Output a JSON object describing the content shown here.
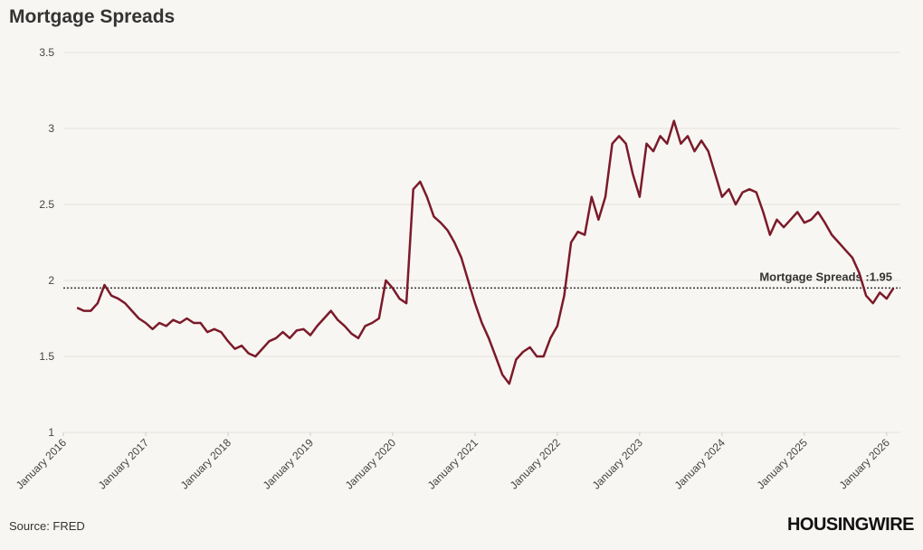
{
  "chart_data": {
    "type": "line",
    "title": "Mortgage Spreads",
    "source": "Source: FRED",
    "logo": "HOUSINGWIRE",
    "x": [
      "2016-03",
      "2016-04",
      "2016-05",
      "2016-06",
      "2016-07",
      "2016-08",
      "2016-09",
      "2016-10",
      "2016-11",
      "2016-12",
      "2017-01",
      "2017-02",
      "2017-03",
      "2017-04",
      "2017-05",
      "2017-06",
      "2017-07",
      "2017-08",
      "2017-09",
      "2017-10",
      "2017-11",
      "2017-12",
      "2018-01",
      "2018-02",
      "2018-03",
      "2018-04",
      "2018-05",
      "2018-06",
      "2018-07",
      "2018-08",
      "2018-09",
      "2018-10",
      "2018-11",
      "2018-12",
      "2019-01",
      "2019-02",
      "2019-03",
      "2019-04",
      "2019-05",
      "2019-06",
      "2019-07",
      "2019-08",
      "2019-09",
      "2019-10",
      "2019-11",
      "2019-12",
      "2020-01",
      "2020-02",
      "2020-03",
      "2020-04",
      "2020-05",
      "2020-06",
      "2020-07",
      "2020-08",
      "2020-09",
      "2020-10",
      "2020-11",
      "2020-12",
      "2021-01",
      "2021-02",
      "2021-03",
      "2021-04",
      "2021-05",
      "2021-06",
      "2021-07",
      "2021-08",
      "2021-09",
      "2021-10",
      "2021-11",
      "2021-12",
      "2022-01",
      "2022-02",
      "2022-03",
      "2022-04",
      "2022-05",
      "2022-06",
      "2022-07",
      "2022-08",
      "2022-09",
      "2022-10",
      "2022-11",
      "2022-12",
      "2023-01",
      "2023-02",
      "2023-03",
      "2023-04",
      "2023-05",
      "2023-06",
      "2023-07",
      "2023-08",
      "2023-09",
      "2023-10",
      "2023-11",
      "2023-12",
      "2024-01",
      "2024-02",
      "2024-03",
      "2024-04",
      "2024-05",
      "2024-06",
      "2024-07",
      "2024-08",
      "2024-09",
      "2024-10",
      "2024-11",
      "2024-12",
      "2025-01",
      "2025-02",
      "2025-03",
      "2025-04",
      "2025-05",
      "2025-06",
      "2025-07",
      "2025-08",
      "2025-09",
      "2025-10",
      "2025-11",
      "2025-12",
      "2026-01",
      "2026-02"
    ],
    "series": [
      {
        "name": "Mortgage Spreads",
        "color": "#7b1a2a",
        "values": [
          1.82,
          1.8,
          1.8,
          1.85,
          1.97,
          1.9,
          1.88,
          1.85,
          1.8,
          1.75,
          1.72,
          1.68,
          1.72,
          1.7,
          1.74,
          1.72,
          1.75,
          1.72,
          1.72,
          1.66,
          1.68,
          1.66,
          1.6,
          1.55,
          1.57,
          1.52,
          1.5,
          1.55,
          1.6,
          1.62,
          1.66,
          1.62,
          1.67,
          1.68,
          1.64,
          1.7,
          1.75,
          1.8,
          1.74,
          1.7,
          1.65,
          1.62,
          1.7,
          1.72,
          1.75,
          2.0,
          1.95,
          1.88,
          1.85,
          2.6,
          2.65,
          2.55,
          2.42,
          2.38,
          2.33,
          2.25,
          2.15,
          2.0,
          1.85,
          1.72,
          1.62,
          1.5,
          1.38,
          1.32,
          1.48,
          1.53,
          1.56,
          1.5,
          1.5,
          1.62,
          1.7,
          1.9,
          2.25,
          2.32,
          2.3,
          2.55,
          2.4,
          2.55,
          2.9,
          2.95,
          2.9,
          2.7,
          2.55,
          2.9,
          2.85,
          2.95,
          2.9,
          3.05,
          2.9,
          2.95,
          2.85,
          2.92,
          2.85,
          2.7,
          2.55,
          2.6,
          2.5,
          2.58,
          2.6,
          2.58,
          2.45,
          2.3,
          2.4,
          2.35,
          2.4,
          2.45,
          2.38,
          2.4,
          2.45,
          2.38,
          2.3,
          2.25,
          2.2,
          2.15,
          2.05,
          1.9,
          1.85,
          1.92,
          1.88,
          1.95
        ]
      }
    ],
    "reference_line": {
      "value": 1.95,
      "label": "Mortgage Spreads :1.95"
    },
    "xlim": [
      "2016-01",
      "2026-03"
    ],
    "xticks": [
      {
        "value": "2016-01",
        "label": "January 2016"
      },
      {
        "value": "2017-01",
        "label": "January 2017"
      },
      {
        "value": "2018-01",
        "label": "January 2018"
      },
      {
        "value": "2019-01",
        "label": "January 2019"
      },
      {
        "value": "2020-01",
        "label": "January 2020"
      },
      {
        "value": "2021-01",
        "label": "January 2021"
      },
      {
        "value": "2022-01",
        "label": "January 2022"
      },
      {
        "value": "2023-01",
        "label": "January 2023"
      },
      {
        "value": "2024-01",
        "label": "January 2024"
      },
      {
        "value": "2025-01",
        "label": "January 2025"
      },
      {
        "value": "2026-01",
        "label": "January 2026"
      }
    ],
    "ylim": [
      1,
      3.5
    ],
    "yticks": [
      1,
      1.5,
      2,
      2.5,
      3,
      3.5
    ],
    "grid": true
  }
}
